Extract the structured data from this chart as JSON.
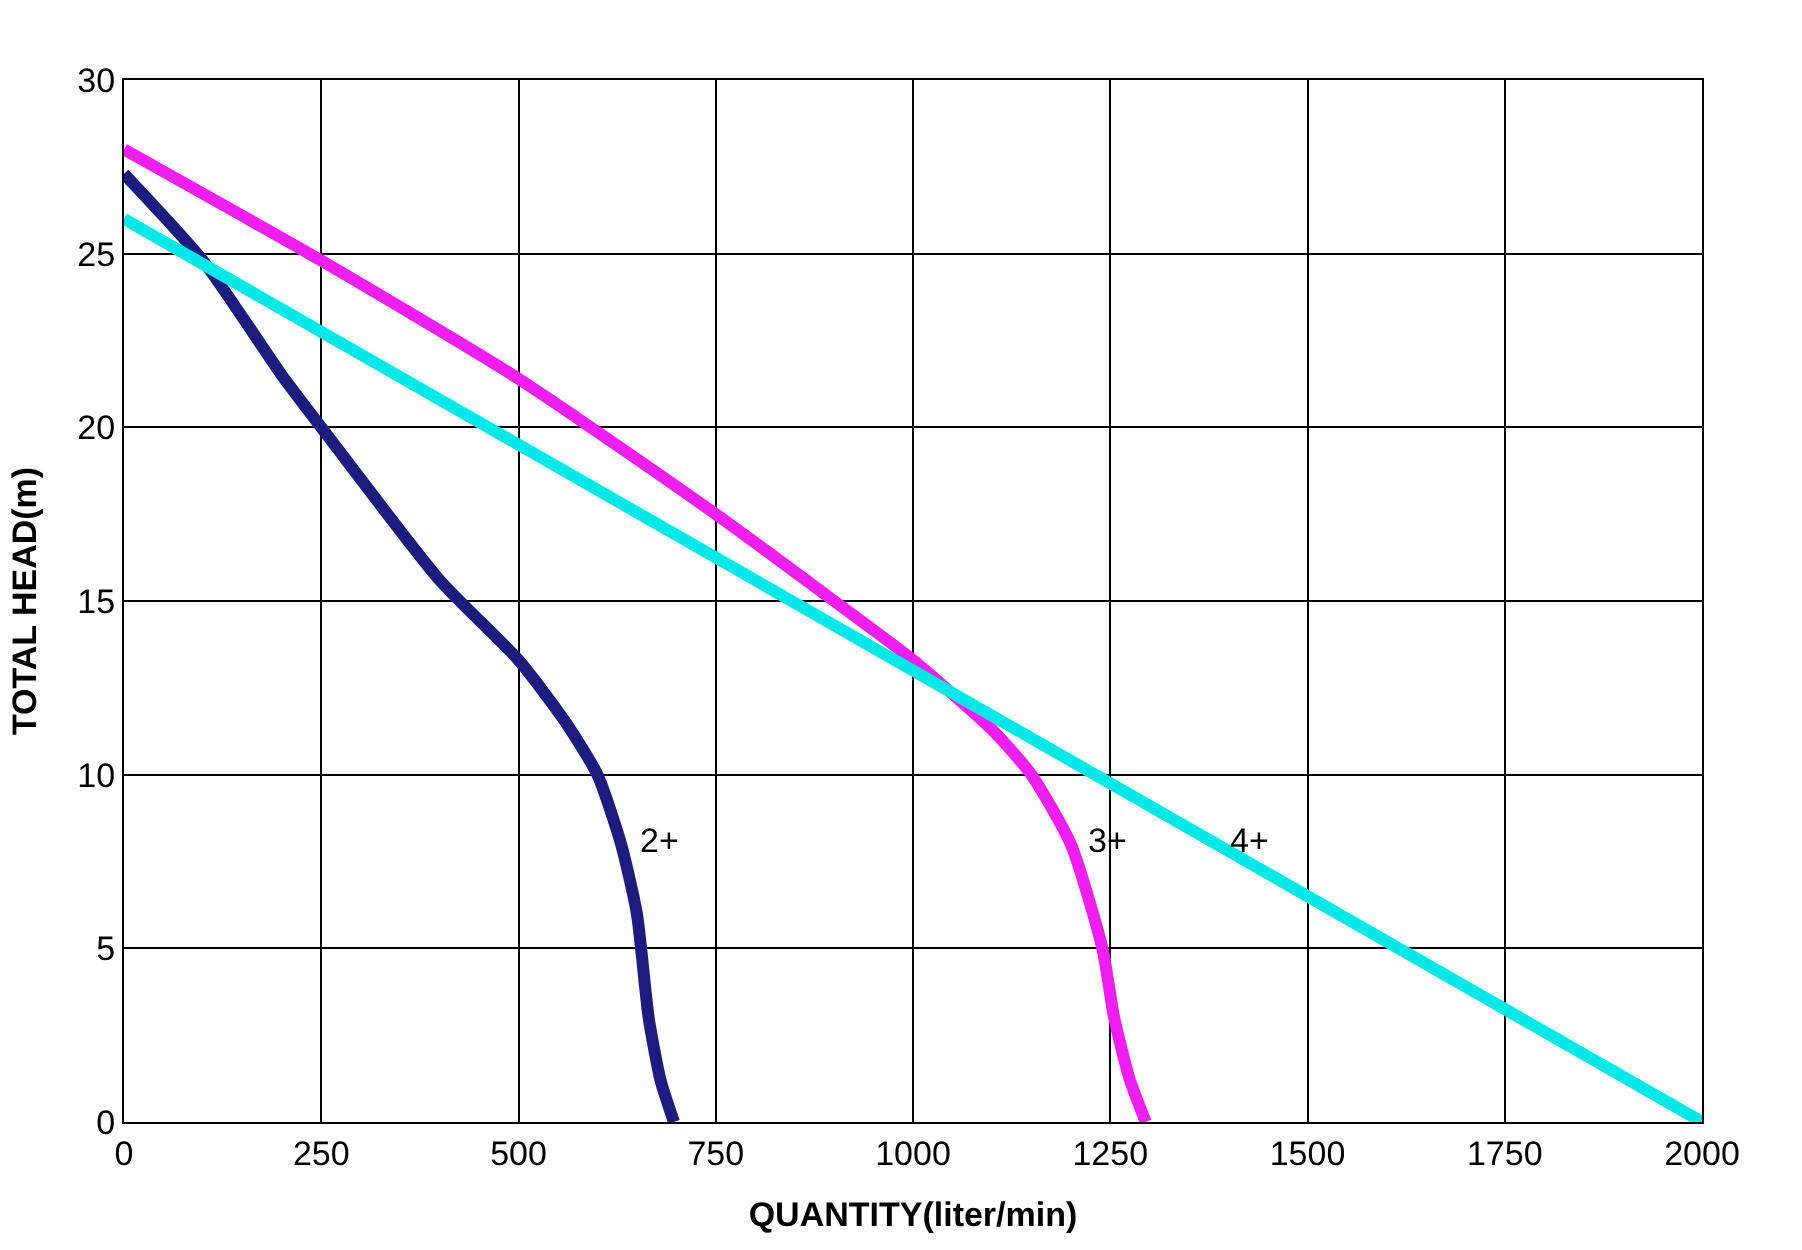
{
  "chart_data": {
    "type": "line",
    "xlabel": "QUANTITY(liter/min)",
    "ylabel": "TOTAL HEAD(m)",
    "xlim": [
      0,
      2000
    ],
    "xticks": [
      0,
      250,
      500,
      750,
      1000,
      1250,
      1500,
      1750,
      2000
    ],
    "ylim": [
      0,
      30
    ],
    "yticks": [
      0,
      5,
      10,
      15,
      20,
      25,
      30
    ],
    "grid": true,
    "legend": false,
    "marker": "none",
    "line_style": "solid",
    "series": [
      {
        "name": "2+",
        "color": "#1c1c80",
        "x": [
          0,
          100,
          200,
          250,
          400,
          500,
          560,
          600,
          630,
          650,
          665,
          680,
          697
        ],
        "values": [
          27.3,
          24.8,
          21.5,
          20,
          15.6,
          13.3,
          11.5,
          10,
          8,
          6,
          3,
          1.2,
          0
        ]
      },
      {
        "name": "3+",
        "color": "#f01ef0",
        "x": [
          0,
          250,
          500,
          750,
          900,
          1000,
          1100,
          1150,
          1200,
          1240,
          1255,
          1275,
          1295
        ],
        "values": [
          28,
          24.8,
          21.4,
          17.5,
          15,
          13.3,
          11.3,
          10,
          8,
          5,
          3,
          1.2,
          0
        ]
      },
      {
        "name": "4+",
        "color": "#00e8e8",
        "x": [
          0,
          2000
        ],
        "values": [
          26,
          0
        ]
      }
    ]
  }
}
